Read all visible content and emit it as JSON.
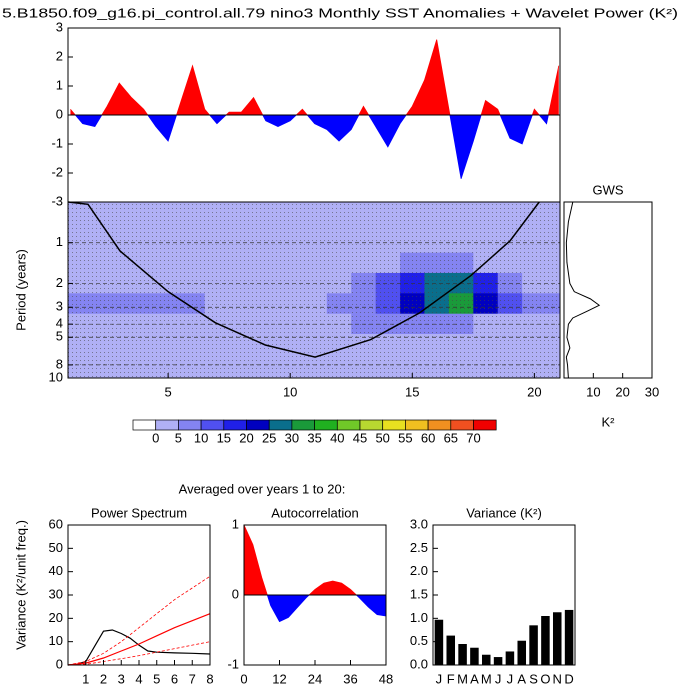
{
  "chart_data": [
    {
      "type": "area",
      "title": "5.B1850.f09_g16.pi_control.all.79 nino3 Monthly SST Anomalies + Wavelet Power (K²)",
      "x": [
        1,
        1.5,
        2,
        2.5,
        3,
        3.5,
        4,
        4.5,
        5,
        5.5,
        6,
        6.5,
        7,
        7.5,
        8,
        8.5,
        9,
        9.5,
        10,
        10.5,
        11,
        11.5,
        12,
        12.5,
        13,
        13.5,
        14,
        14.5,
        15,
        15.5,
        16,
        16.5,
        17,
        17.5,
        18,
        18.5,
        19,
        19.5,
        20,
        20.5,
        21
      ],
      "values": [
        0.2,
        -0.3,
        -0.4,
        0.3,
        1.1,
        0.6,
        0.2,
        -0.4,
        -0.9,
        0.4,
        1.7,
        0.2,
        -0.3,
        0.1,
        0.1,
        0.6,
        -0.2,
        -0.4,
        -0.2,
        0.2,
        -0.3,
        -0.5,
        -0.9,
        -0.5,
        0.3,
        -0.4,
        -1.1,
        -0.3,
        0.3,
        1.2,
        2.6,
        0.2,
        -2.2,
        -0.9,
        0.5,
        0.2,
        -0.8,
        -1.0,
        0.2,
        -0.3,
        1.7
      ],
      "pos_color": "#ff0000",
      "neg_color": "#0000ff",
      "xlim": [
        0.9,
        21.05
      ],
      "ylim": [
        -3,
        3
      ],
      "yticks": [
        -3,
        -2,
        -1,
        0,
        1,
        2,
        3
      ]
    },
    {
      "type": "contour",
      "ylabel": "Period (years)",
      "x": [
        1,
        2,
        3,
        4,
        5,
        6,
        7,
        8,
        9,
        10,
        11,
        12,
        13,
        14,
        15,
        16,
        17,
        18,
        19,
        20,
        21
      ],
      "y": [
        0.5,
        0.7,
        1,
        1.4,
        2,
        2.8,
        4,
        5.6,
        8,
        10
      ],
      "z": [
        [
          1,
          1,
          1,
          1,
          1,
          1,
          1,
          1,
          1,
          1,
          1,
          1,
          1,
          1,
          1,
          1,
          1,
          1,
          1,
          1,
          1
        ],
        [
          1.5,
          1.5,
          1.5,
          1.5,
          1.5,
          1.5,
          1.5,
          1.5,
          1.5,
          1.5,
          1.5,
          1.5,
          1.5,
          1.5,
          1.5,
          1.5,
          1.5,
          1.5,
          1.5,
          1.5,
          1.5
        ],
        [
          2,
          2,
          2,
          2,
          2,
          2,
          2,
          2,
          2,
          2,
          2,
          2,
          2,
          2,
          4,
          4,
          4,
          2,
          2,
          2,
          2
        ],
        [
          2,
          2,
          2,
          2,
          2,
          2,
          2,
          2,
          2,
          2,
          2,
          2,
          2,
          4,
          7,
          8,
          7,
          4,
          2,
          2,
          2
        ],
        [
          2,
          2,
          4,
          4,
          3,
          3,
          3,
          3,
          3,
          3,
          3,
          3,
          5,
          12,
          18,
          25,
          28,
          18,
          8,
          4,
          3
        ],
        [
          5,
          8,
          9,
          9,
          8,
          6,
          3,
          2,
          2,
          2,
          3,
          5,
          8,
          14,
          20,
          28,
          30,
          22,
          12,
          8,
          6
        ],
        [
          3,
          4,
          4,
          3,
          3,
          2,
          2,
          2,
          2,
          2,
          2,
          3,
          5,
          7,
          8,
          6,
          5,
          3,
          2,
          2,
          2
        ],
        [
          2,
          2,
          2,
          2,
          2,
          2,
          2,
          2,
          2,
          2,
          2,
          2,
          2,
          3,
          3,
          3,
          2,
          2,
          2,
          2,
          2
        ],
        [
          1.5,
          1.5,
          1.5,
          1.5,
          1.5,
          1.5,
          1.5,
          1.5,
          1.5,
          1.5,
          1.5,
          1.5,
          1.5,
          1.5,
          1.5,
          1.5,
          1.5,
          1.5,
          1.5,
          1.5,
          1.5
        ],
        [
          1,
          1,
          1,
          1,
          1,
          1,
          1,
          1,
          1,
          1,
          1,
          1,
          1,
          1,
          1,
          1,
          1,
          1,
          1,
          1,
          1
        ]
      ],
      "xlim": [
        0.9,
        21.05
      ],
      "ylim": [
        0.5,
        10
      ],
      "log_y": true,
      "grid": true,
      "xticks": [
        5,
        10,
        15,
        20
      ],
      "yticks": [
        1,
        2,
        3,
        4,
        5,
        8,
        10
      ],
      "levels": [
        0,
        5,
        10,
        15,
        20,
        25,
        30,
        35,
        40,
        45,
        50,
        55,
        60,
        65,
        70
      ],
      "level_colors": [
        "#ffffff",
        "#b0b0f5",
        "#8484f2",
        "#5050f0",
        "#2020e8",
        "#0000c0",
        "#0a6e8c",
        "#1a9a3a",
        "#20b020",
        "#70c828",
        "#b8d830",
        "#e8e020",
        "#f0c020",
        "#f09020",
        "#f05020",
        "#f00000"
      ],
      "coi_x": [
        0.9,
        1.72,
        3.03,
        5,
        6.93,
        8.98,
        11.02,
        13.3,
        15.3,
        17.4,
        19,
        20.2
      ],
      "coi_y": [
        0.5,
        0.52,
        1.15,
        2.3,
        3.9,
        5.7,
        7,
        5.2,
        3.3,
        1.75,
        0.97,
        0.5
      ]
    },
    {
      "type": "line",
      "title": "GWS",
      "xlabel": "K²",
      "y": [
        0.5,
        0.7,
        1,
        1.4,
        2,
        2.3,
        2.6,
        2.9,
        3.2,
        3.6,
        4,
        5,
        6,
        7,
        8,
        10
      ],
      "values": [
        3,
        1.5,
        0.8,
        1,
        2,
        3.5,
        9,
        12,
        8,
        3,
        1.5,
        1,
        2,
        0.8,
        1.2,
        1.5
      ],
      "color": "#000000",
      "xlim": [
        0,
        30
      ],
      "ylim": [
        0.5,
        10
      ],
      "log_y": true,
      "xticks": [
        10,
        20,
        30
      ]
    },
    {
      "type": "line",
      "suptitle": "Averaged over years 1 to 20:",
      "title": "Power Spectrum",
      "ylabel": "Variance (K²/unit freq.)",
      "series": [
        {
          "color": "#000000",
          "dashed": false,
          "x": [
            0,
            0.5,
            1,
            1.5,
            2,
            2.5,
            3,
            3.5,
            4,
            4.5,
            5,
            6,
            7,
            8
          ],
          "values": [
            0,
            0.3,
            1.5,
            8,
            14.5,
            15,
            13.5,
            11.5,
            8.5,
            6,
            5.5,
            5.2,
            5,
            4.7
          ]
        },
        {
          "color": "#ff0000",
          "dashed": false,
          "x": [
            0,
            1,
            2,
            3,
            4,
            5,
            6,
            7,
            8
          ],
          "values": [
            0,
            0.8,
            3,
            6,
            9,
            12.5,
            16,
            19,
            22
          ]
        },
        {
          "color": "#ff0000",
          "dashed": true,
          "x": [
            0,
            1,
            2,
            3,
            4,
            5,
            6,
            7,
            8
          ],
          "values": [
            0,
            1.5,
            5,
            10,
            16,
            22,
            28,
            33,
            38
          ]
        },
        {
          "color": "#ff0000",
          "dashed": true,
          "x": [
            0,
            1,
            2,
            3,
            4,
            5,
            6,
            7,
            8
          ],
          "values": [
            0,
            0.3,
            1.5,
            2.7,
            4,
            5.5,
            7,
            8.5,
            10
          ]
        }
      ],
      "xlim": [
        0,
        8
      ],
      "ylim": [
        0,
        60
      ],
      "xticks": [
        1,
        2,
        3,
        4,
        5,
        6,
        7,
        8
      ],
      "yticks": [
        0,
        10,
        20,
        30,
        40,
        50,
        60
      ]
    },
    {
      "type": "area",
      "title": "Autocorrelation",
      "x": [
        0,
        3,
        6,
        9,
        12,
        15,
        18,
        21,
        24,
        27,
        30,
        33,
        36,
        39,
        42,
        45,
        48
      ],
      "values": [
        1.0,
        0.72,
        0.25,
        -0.15,
        -0.38,
        -0.32,
        -0.18,
        -0.04,
        0.08,
        0.17,
        0.2,
        0.17,
        0.08,
        -0.04,
        -0.17,
        -0.28,
        -0.3
      ],
      "pos_color": "#ff0000",
      "neg_color": "#0000ff",
      "xlim": [
        0,
        48
      ],
      "ylim": [
        -1,
        1
      ],
      "xticks": [
        0,
        12,
        24,
        36,
        48
      ],
      "yticks": [
        -1,
        0,
        1
      ]
    },
    {
      "type": "bar",
      "title": "Variance (K²)",
      "categories": [
        "J",
        "F",
        "M",
        "A",
        "M",
        "J",
        "J",
        "A",
        "S",
        "O",
        "N",
        "D"
      ],
      "values": [
        0.97,
        0.63,
        0.45,
        0.37,
        0.22,
        0.17,
        0.29,
        0.52,
        0.85,
        1.05,
        1.13,
        1.18
      ],
      "color": "#000000",
      "ylim": [
        0,
        3
      ],
      "yticks": [
        {
          "value": 0,
          "label": "0.0"
        },
        {
          "value": 0.5,
          "label": "0.5"
        },
        {
          "value": 1,
          "label": "1.0"
        },
        {
          "value": 1.5,
          "label": "1.5"
        },
        {
          "value": 2,
          "label": "2.0"
        },
        {
          "value": 2.5,
          "label": "2.5"
        },
        {
          "value": 3,
          "label": "3.0"
        }
      ]
    }
  ]
}
